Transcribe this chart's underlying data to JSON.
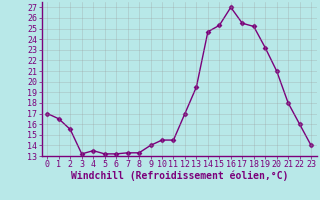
{
  "x": [
    0,
    1,
    2,
    3,
    4,
    5,
    6,
    7,
    8,
    9,
    10,
    11,
    12,
    13,
    14,
    15,
    16,
    17,
    18,
    19,
    20,
    21,
    22,
    23
  ],
  "y": [
    17.0,
    16.5,
    15.5,
    13.2,
    13.5,
    13.2,
    13.2,
    13.3,
    13.3,
    14.0,
    14.5,
    14.5,
    17.0,
    19.5,
    24.7,
    25.3,
    27.0,
    25.5,
    25.2,
    23.2,
    21.0,
    18.0,
    16.0,
    14.0
  ],
  "line_color": "#7b007b",
  "marker": "D",
  "marker_size": 2.5,
  "bg_color": "#b8e8e8",
  "grid_color": "#999999",
  "xlabel": "Windchill (Refroidissement éolien,°C)",
  "xlim": [
    -0.5,
    23.5
  ],
  "ylim": [
    13,
    27.5
  ],
  "yticks": [
    13,
    14,
    15,
    16,
    17,
    18,
    19,
    20,
    21,
    22,
    23,
    24,
    25,
    26,
    27
  ],
  "xticks": [
    0,
    1,
    2,
    3,
    4,
    5,
    6,
    7,
    8,
    9,
    10,
    11,
    12,
    13,
    14,
    15,
    16,
    17,
    18,
    19,
    20,
    21,
    22,
    23
  ],
  "xlabel_fontsize": 7,
  "tick_fontsize": 6,
  "line_width": 1.0,
  "spine_color": "#7b007b"
}
